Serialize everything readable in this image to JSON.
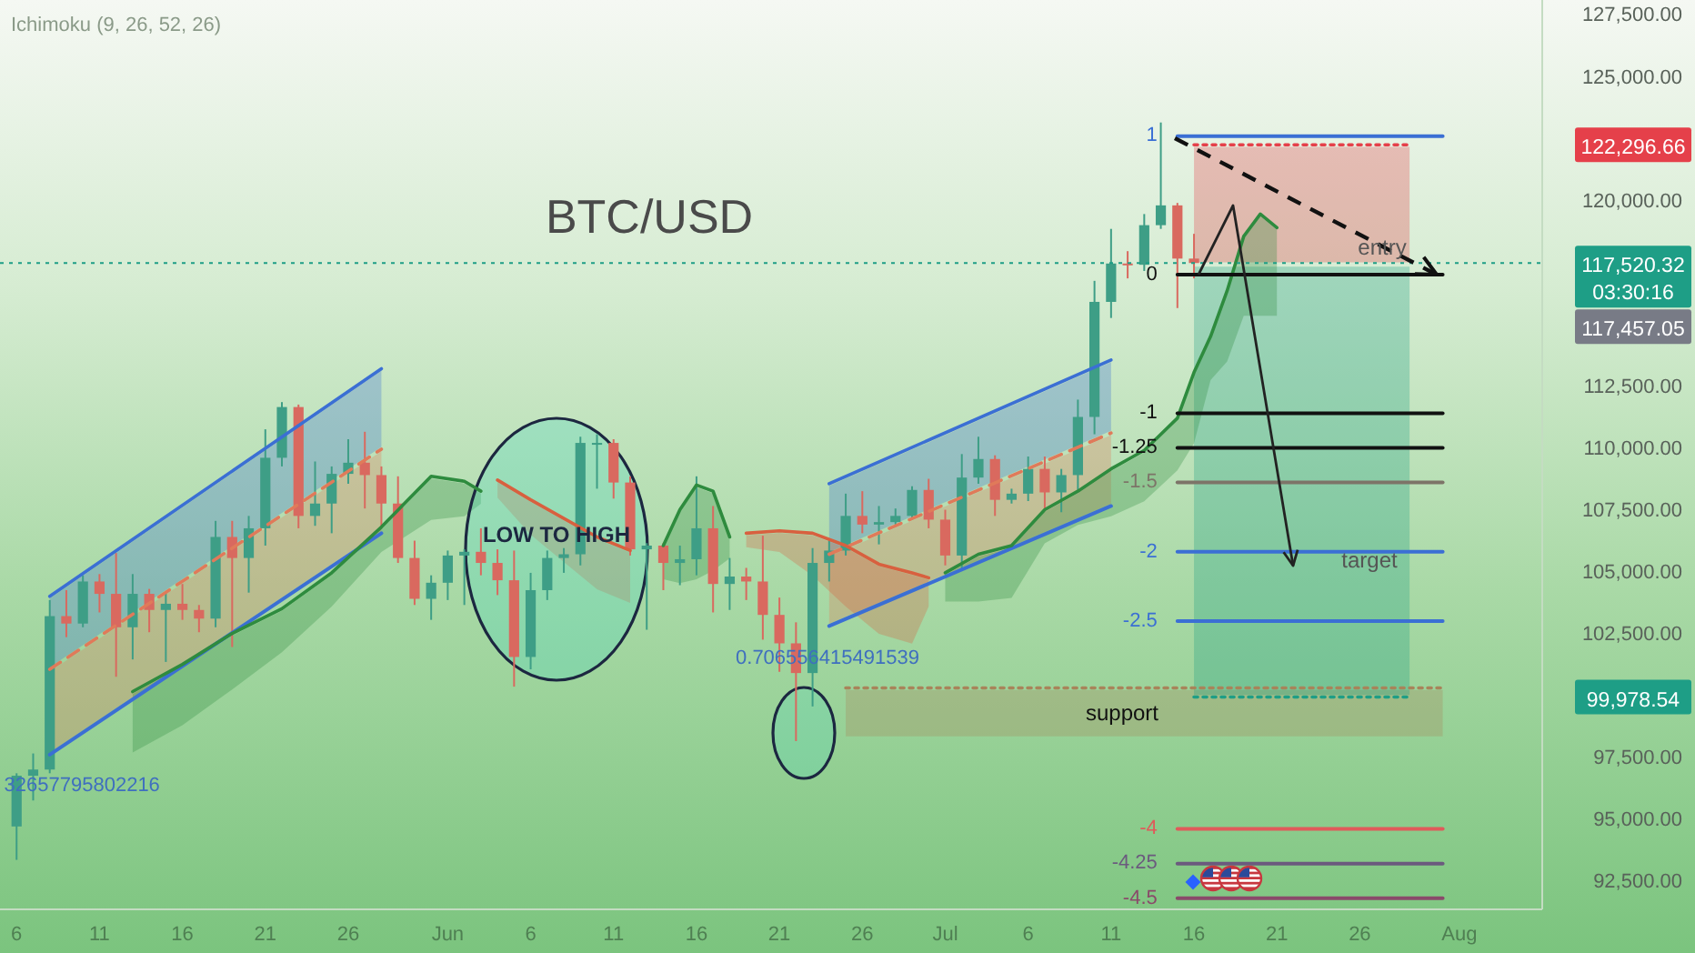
{
  "chart_data": {
    "type": "candlestick",
    "title": "BTC/USD",
    "x": [
      "--05-06",
      "--05-07",
      "--05-08",
      "--05-09",
      "--05-10",
      "--05-11",
      "--05-12",
      "--05-13",
      "--05-14",
      "--05-15",
      "--05-16",
      "--05-17",
      "--05-18",
      "--05-19",
      "--05-20",
      "--05-21",
      "--05-22",
      "--05-23",
      "--05-24",
      "--05-25",
      "--05-26",
      "--05-27",
      "--05-28",
      "--05-29",
      "--05-30",
      "--05-31",
      "--06-01",
      "--06-02",
      "--06-03",
      "--06-04",
      "--06-05",
      "--06-06",
      "--06-07",
      "--06-08",
      "--06-09",
      "--06-10",
      "--06-11",
      "--06-12",
      "--06-13",
      "--06-14",
      "--06-15",
      "--06-16",
      "--06-17",
      "--06-18",
      "--06-19",
      "--06-20",
      "--06-21",
      "--06-22",
      "--06-23",
      "--06-24",
      "--06-25",
      "--06-26",
      "--06-27",
      "--06-28",
      "--06-29",
      "--06-30",
      "--07-01",
      "--07-02",
      "--07-03",
      "--07-04",
      "--07-05",
      "--07-06",
      "--07-07",
      "--07-08",
      "--07-09",
      "--07-10",
      "--07-11",
      "--07-12",
      "--07-13",
      "--07-14",
      "--07-15",
      "--07-16"
    ],
    "ohlc": [
      [
        94750,
        96900,
        93400,
        96800
      ],
      [
        96800,
        97700,
        95800,
        97050
      ],
      [
        97050,
        103900,
        96900,
        103250
      ],
      [
        103250,
        104300,
        102400,
        102950
      ],
      [
        102950,
        104900,
        102800,
        104650
      ],
      [
        104650,
        104950,
        103400,
        104150
      ],
      [
        104150,
        105800,
        100800,
        102800
      ],
      [
        102800,
        104950,
        101500,
        104150
      ],
      [
        104150,
        104350,
        102600,
        103500
      ],
      [
        103500,
        104200,
        101400,
        103750
      ],
      [
        103750,
        104550,
        103100,
        103500
      ],
      [
        103500,
        103700,
        102600,
        103150
      ],
      [
        103150,
        107100,
        102800,
        106450
      ],
      [
        106450,
        107100,
        102000,
        105600
      ],
      [
        105600,
        107300,
        104200,
        106800
      ],
      [
        106800,
        110800,
        106100,
        109650
      ],
      [
        109650,
        111900,
        109300,
        111700
      ],
      [
        111700,
        111800,
        106800,
        107300
      ],
      [
        107300,
        109500,
        106900,
        107800
      ],
      [
        107800,
        109300,
        106600,
        109000
      ],
      [
        109000,
        110400,
        108600,
        109450
      ],
      [
        109450,
        110700,
        107600,
        108950
      ],
      [
        108950,
        109300,
        106800,
        107800
      ],
      [
        107800,
        108900,
        105400,
        105600
      ],
      [
        105600,
        106300,
        103700,
        103950
      ],
      [
        103950,
        104900,
        103100,
        104600
      ],
      [
        104600,
        105900,
        103900,
        105700
      ],
      [
        105700,
        105950,
        103700,
        105850
      ],
      [
        105850,
        106800,
        104900,
        105400
      ],
      [
        105400,
        105950,
        104100,
        104700
      ],
      [
        104700,
        105900,
        100400,
        101600
      ],
      [
        101600,
        105000,
        101100,
        104300
      ],
      [
        104300,
        105900,
        103900,
        105600
      ],
      [
        105600,
        106000,
        105000,
        105750
      ],
      [
        105750,
        110500,
        105300,
        110250
      ],
      [
        110250,
        110600,
        108400,
        110250
      ],
      [
        110250,
        110400,
        108000,
        108650
      ],
      [
        108650,
        108900,
        105700,
        105950
      ],
      [
        105950,
        106200,
        102700,
        106100
      ],
      [
        106100,
        106200,
        104300,
        105400
      ],
      [
        105400,
        106100,
        104500,
        105550
      ],
      [
        105550,
        108900,
        104900,
        106800
      ],
      [
        106800,
        107700,
        103400,
        104550
      ],
      [
        104550,
        105600,
        103500,
        104850
      ],
      [
        104850,
        105200,
        103900,
        104650
      ],
      [
        104650,
        106500,
        102300,
        103300
      ],
      [
        103300,
        104000,
        101000,
        102150
      ],
      [
        102150,
        103000,
        98200,
        100950
      ],
      [
        100950,
        106000,
        99600,
        105400
      ],
      [
        105400,
        106300,
        104650,
        105900
      ],
      [
        105900,
        108200,
        105700,
        107300
      ],
      [
        107300,
        108300,
        106600,
        106950
      ],
      [
        106950,
        107700,
        106150,
        107050
      ],
      [
        107050,
        107600,
        106900,
        107300
      ],
      [
        107300,
        108500,
        107200,
        108350
      ],
      [
        108350,
        108800,
        106800,
        107150
      ],
      [
        107150,
        107550,
        105300,
        105700
      ],
      [
        105700,
        109800,
        105100,
        108850
      ],
      [
        108850,
        110500,
        108600,
        109600
      ],
      [
        109600,
        109750,
        107300,
        107950
      ],
      [
        107950,
        108400,
        107800,
        108200
      ],
      [
        108200,
        109700,
        107900,
        109200
      ],
      [
        109200,
        109700,
        107500,
        108250
      ],
      [
        108250,
        109200,
        107450,
        108950
      ],
      [
        108950,
        112000,
        108350,
        111300
      ],
      [
        111300,
        116800,
        110600,
        115950
      ],
      [
        115950,
        118900,
        115300,
        117500
      ],
      [
        117500,
        118000,
        116900,
        117450
      ],
      [
        117450,
        119500,
        117200,
        119050
      ],
      [
        119050,
        123200,
        118900,
        119850
      ],
      [
        119850,
        119950,
        115700,
        117700
      ],
      [
        117700,
        118700,
        116900,
        117520
      ]
    ],
    "colors": [
      "#3e9e86",
      "#3e9e86",
      "#3e9e86",
      "#d9695f",
      "#3e9e86",
      "#d9695f",
      "#d9695f",
      "#3e9e86",
      "#d9695f",
      "#3e9e86",
      "#d9695f",
      "#d9695f",
      "#3e9e86",
      "#d9695f",
      "#3e9e86",
      "#3e9e86",
      "#3e9e86",
      "#d9695f",
      "#3e9e86",
      "#3e9e86",
      "#3e9e86",
      "#d9695f",
      "#d9695f",
      "#d9695f",
      "#d9695f",
      "#3e9e86",
      "#3e9e86",
      "#3e9e86",
      "#d9695f",
      "#d9695f",
      "#d9695f",
      "#3e9e86",
      "#3e9e86",
      "#3e9e86",
      "#3e9e86",
      "#3e9e86",
      "#d9695f",
      "#d9695f",
      "#3e9e86",
      "#d9695f",
      "#3e9e86",
      "#3e9e86",
      "#d9695f",
      "#3e9e86",
      "#d9695f",
      "#d9695f",
      "#d9695f",
      "#d9695f",
      "#3e9e86",
      "#3e9e86",
      "#3e9e86",
      "#d9695f",
      "#3e9e86",
      "#3e9e86",
      "#3e9e86",
      "#d9695f",
      "#d9695f",
      "#3e9e86",
      "#3e9e86",
      "#d9695f",
      "#3e9e86",
      "#3e9e86",
      "#d9695f",
      "#3e9e86",
      "#3e9e86",
      "#3e9e86",
      "#3e9e86",
      "#d9695f",
      "#3e9e86",
      "#3e9e86",
      "#d9695f",
      "#d9695f"
    ],
    "xlim": [
      "--05-05",
      "--08-06"
    ],
    "ylim": [
      91400,
      128150
    ],
    "xticks": [
      {
        "value": "--05-06",
        "label": "6"
      },
      {
        "value": "--05-11",
        "label": "11"
      },
      {
        "value": "--05-16",
        "label": "16"
      },
      {
        "value": "--05-21",
        "label": "21"
      },
      {
        "value": "--05-26",
        "label": "26"
      },
      {
        "value": "--06-01",
        "label": "Jun"
      },
      {
        "value": "--06-06",
        "label": "6"
      },
      {
        "value": "--06-11",
        "label": "11"
      },
      {
        "value": "--06-16",
        "label": "16"
      },
      {
        "value": "--06-21",
        "label": "21"
      },
      {
        "value": "--06-26",
        "label": "26"
      },
      {
        "value": "--07-01",
        "label": "Jul"
      },
      {
        "value": "--07-06",
        "label": "6"
      },
      {
        "value": "--07-11",
        "label": "11"
      },
      {
        "value": "--07-16",
        "label": "16"
      },
      {
        "value": "--07-21",
        "label": "21"
      },
      {
        "value": "--07-26",
        "label": "26"
      },
      {
        "value": "--08-01",
        "label": "Aug"
      }
    ],
    "yticks": [
      {
        "value": 92500,
        "label": "92,500.00"
      },
      {
        "value": 95000,
        "label": "95,000.00"
      },
      {
        "value": 97500,
        "label": "97,500.00"
      },
      {
        "value": 102500,
        "label": "102,500.00"
      },
      {
        "value": 105000,
        "label": "105,000.00"
      },
      {
        "value": 107500,
        "label": "107,500.00"
      },
      {
        "value": 110000,
        "label": "110,000.00"
      },
      {
        "value": 112500,
        "label": "112,500.00"
      },
      {
        "value": 120000,
        "label": "120,000.00"
      },
      {
        "value": 125000,
        "label": "125,000.00"
      },
      {
        "value": 127500,
        "label": "127,500.00"
      }
    ],
    "series": [
      {
        "type": "line",
        "x": [
          "--05-08",
          "--05-28"
        ],
        "values": [
          104050,
          113250
        ],
        "lower": [
          101100,
          110000
        ],
        "upper": [
          104050,
          113250
        ],
        "color": "#3b6fd4"
      },
      {
        "type": "line",
        "x": [
          "--05-08",
          "--05-28"
        ],
        "values": [
          101100,
          110000
        ],
        "lower": [
          97650,
          106600
        ],
        "upper": [
          101100,
          110000
        ],
        "color": "#e07a5a",
        "line_style": "dashed"
      },
      {
        "type": "line",
        "x": [
          "--05-08",
          "--05-28"
        ],
        "values": [
          97650,
          106600
        ],
        "color": "#3b6fd4"
      },
      {
        "type": "line",
        "x": [
          "--06-24",
          "--07-11"
        ],
        "values": [
          108600,
          113600
        ],
        "lower": [
          105750,
          110650
        ],
        "upper": [
          108600,
          113600
        ],
        "color": "#3b6fd4"
      },
      {
        "type": "line",
        "x": [
          "--06-24",
          "--07-11"
        ],
        "values": [
          105750,
          110650
        ],
        "lower": [
          102850,
          107700
        ],
        "upper": [
          105750,
          110650
        ],
        "color": "#e07a5a",
        "line_style": "dashed"
      },
      {
        "type": "line",
        "x": [
          "--06-24",
          "--07-11"
        ],
        "values": [
          102850,
          107700
        ],
        "color": "#3b6fd4"
      },
      {
        "type": "line",
        "x": [
          "--06-25",
          "--07-31"
        ],
        "values": [
          100350,
          100350
        ],
        "lower": [
          98300,
          98300
        ],
        "upper": [
          100350,
          100350
        ],
        "color": "#a8845a",
        "line_style": "dotted"
      },
      {
        "type": "line",
        "x": [
          "--07-16",
          "--07-29"
        ],
        "values": [
          122300,
          122300
        ],
        "lower": [
          117460,
          117460
        ],
        "upper": [
          122300,
          122300
        ],
        "color": "#e5404a",
        "line_style": "dotted"
      },
      {
        "type": "line",
        "x": [
          "--07-16",
          "--07-29"
        ],
        "values": [
          99980,
          99980
        ],
        "lower": [
          99980,
          99980
        ],
        "upper": [
          117460,
          117460
        ],
        "color": "#1e9e86",
        "line_style": "dotted"
      },
      {
        "type": "line",
        "x": [
          "--05-13",
          "--05-16",
          "--05-19",
          "--05-22",
          "--05-25",
          "--05-28",
          "--05-31",
          "--06-02",
          "--06-03",
          "--06-04",
          "--06-14",
          "--06-15",
          "--06-16",
          "--06-17",
          "--06-18",
          "--06-19",
          "--07-01",
          "--07-03",
          "--07-05",
          "--07-07",
          "--07-09",
          "--07-11",
          "--07-13",
          "--07-15",
          "--07-16",
          "--07-17",
          "--07-18",
          "--07-19",
          "--07-20",
          "--07-21"
        ],
        "values": [
          100200,
          101300,
          102550,
          103550,
          105000,
          106850,
          108900,
          108700,
          108300,
          null,
          106100,
          107550,
          108550,
          108300,
          106450,
          null,
          105000,
          105750,
          106100,
          107550,
          108300,
          109200,
          109950,
          111250,
          113100,
          114550,
          116400,
          118600,
          119500,
          118950
        ],
        "lower": [
          97650,
          98750,
          100200,
          101700,
          103550,
          105750,
          107050,
          107200,
          107700,
          null,
          104650,
          104500,
          104650,
          105000,
          105500,
          null,
          103750,
          103750,
          103900,
          106100,
          106850,
          107200,
          107800,
          109050,
          110150,
          112700,
          113450,
          115300,
          115300,
          115300
        ],
        "upper": [
          100200,
          101300,
          102550,
          103550,
          105000,
          106850,
          108900,
          108700,
          108300,
          null,
          106100,
          107550,
          108550,
          108300,
          106450,
          null,
          105000,
          105750,
          106100,
          107550,
          108300,
          109200,
          109950,
          111250,
          113100,
          114550,
          116400,
          118600,
          119500,
          118950
        ],
        "color": "#2e8b3e"
      },
      {
        "type": "line",
        "x": [
          "--06-04",
          "--06-06",
          "--06-08",
          "--06-10",
          "--06-12",
          "--06-13",
          "--06-19",
          "--06-21",
          "--06-23",
          "--06-25",
          "--06-27",
          "--06-29",
          "--06-30"
        ],
        "values": [
          108750,
          107950,
          107200,
          106450,
          105900,
          null,
          106600,
          106700,
          106600,
          106100,
          105350,
          105000,
          104800
        ],
        "lower": [
          107950,
          106450,
          105350,
          104250,
          103700,
          null,
          105950,
          105750,
          104800,
          103550,
          102450,
          102050,
          103550
        ],
        "upper": [
          108750,
          107950,
          107200,
          106450,
          105900,
          null,
          106600,
          106700,
          106600,
          106100,
          105350,
          105000,
          104800
        ],
        "color": "#d8603f"
      },
      {
        "type": "line",
        "name": "1",
        "x": [
          "--07-15",
          "--07-31"
        ],
        "values": [
          122650,
          122650
        ],
        "color": "#3b6fd4"
      },
      {
        "type": "line",
        "name": "0",
        "x": [
          "--07-15",
          "--07-31"
        ],
        "values": [
          117050,
          117050
        ],
        "color": "#111111"
      },
      {
        "type": "line",
        "name": "-1",
        "x": [
          "--07-15",
          "--07-31"
        ],
        "values": [
          111450,
          111450
        ],
        "color": "#111111"
      },
      {
        "type": "line",
        "name": "-1.25",
        "x": [
          "--07-15",
          "--07-31"
        ],
        "values": [
          110050,
          110050
        ],
        "color": "#111111"
      },
      {
        "type": "line",
        "name": "-1.5",
        "x": [
          "--07-15",
          "--07-31"
        ],
        "values": [
          108650,
          108650
        ],
        "color": "#7d7468"
      },
      {
        "type": "line",
        "name": "-2",
        "x": [
          "--07-15",
          "--07-31"
        ],
        "values": [
          105850,
          105850
        ],
        "color": "#3b6fd4"
      },
      {
        "type": "line",
        "name": "-2.5",
        "x": [
          "--07-15",
          "--07-31"
        ],
        "values": [
          103050,
          103050
        ],
        "color": "#3b6fd4"
      },
      {
        "type": "line",
        "name": "-4",
        "x": [
          "--07-15",
          "--07-31"
        ],
        "values": [
          94650,
          94650
        ],
        "color": "#e05a5a"
      },
      {
        "type": "line",
        "name": "-4.25",
        "x": [
          "--07-15",
          "--07-31"
        ],
        "values": [
          93250,
          93250
        ],
        "color": "#6b5a7e"
      },
      {
        "type": "line",
        "name": "-4.5",
        "x": [
          "--07-15",
          "--07-31"
        ],
        "values": [
          91850,
          91850
        ],
        "color": "#8a4a6a"
      }
    ],
    "ref_lines": [
      {
        "axis": "y",
        "value": 117520.32,
        "label": "117,520.32\n03:30:16",
        "color": "#1e9e86",
        "line_style": "dotted"
      }
    ],
    "annotations": [
      "Ichimoku (9, 26, 52, 26)",
      "LOW TO HIGH",
      "0.706556415491539",
      "32657795802216",
      "support",
      "entry",
      "target",
      "117,457.05",
      "122,296.66",
      "99,978.54"
    ]
  }
}
